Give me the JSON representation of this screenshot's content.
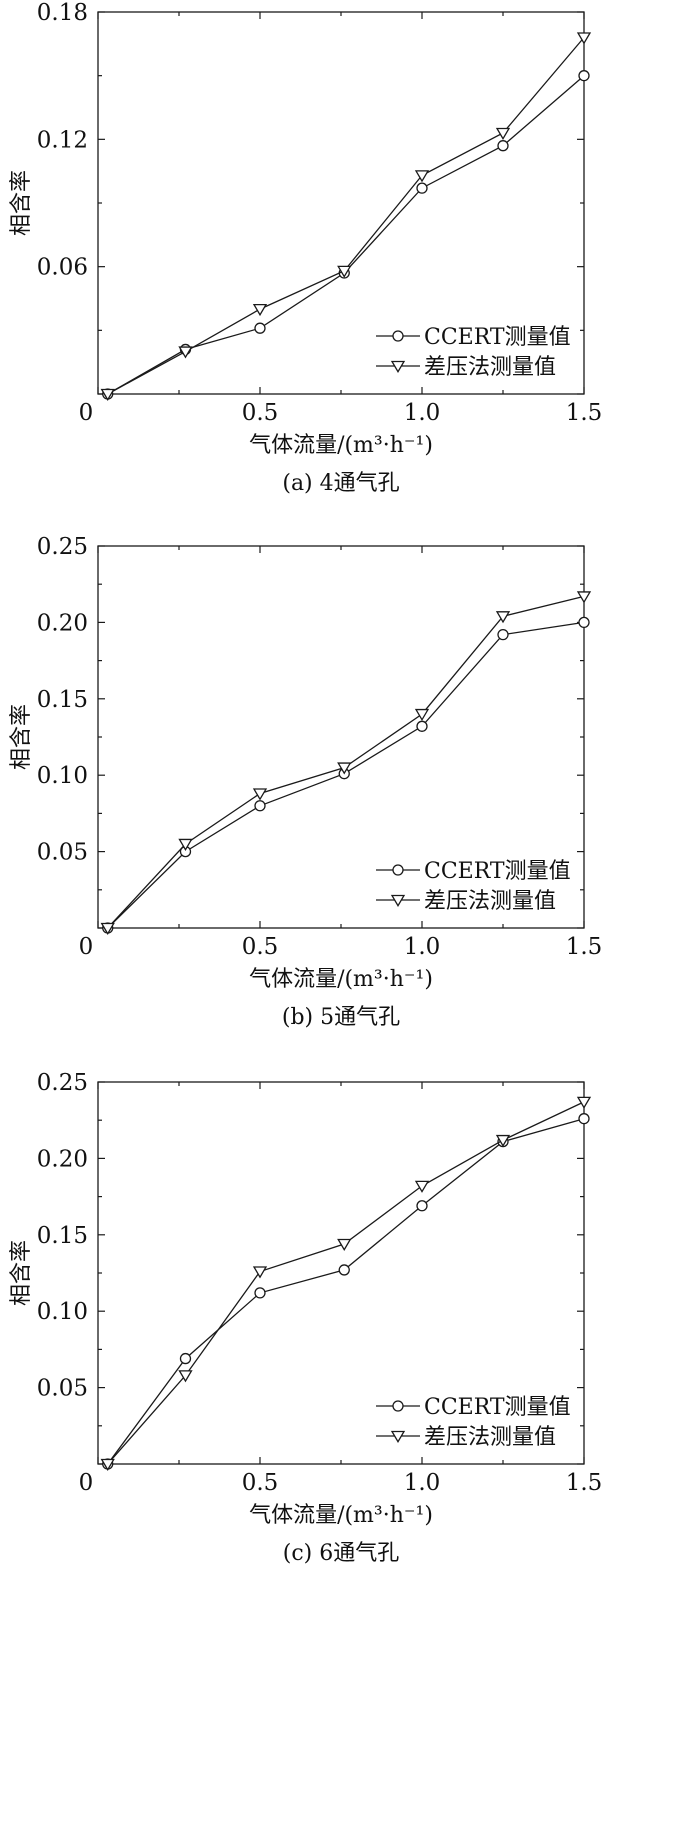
{
  "figure": {
    "background": "#ffffff",
    "line_color": "#1a1a1a"
  },
  "chart_data": [
    {
      "type": "line",
      "caption": "(a) 4通气孔",
      "xlabel": "气体流量/(m³·h⁻¹)",
      "ylabel": "相含率",
      "xlim": [
        0,
        1.5
      ],
      "ylim": [
        0,
        0.18
      ],
      "xticks": [
        0,
        0.5,
        1.0,
        1.5
      ],
      "xtick_labels": [
        "0",
        "0.5",
        "1.0",
        "1.5"
      ],
      "yticks": [
        0.06,
        0.12,
        0.18
      ],
      "ytick_labels": [
        "0.06",
        "0.12",
        "0.18"
      ],
      "legend_position": "bottom-right",
      "grid": false,
      "series": [
        {
          "name": "CCERT测量值",
          "marker": "circle",
          "x": [
            0.03,
            0.27,
            0.5,
            0.76,
            1.0,
            1.25,
            1.5
          ],
          "y": [
            0.0,
            0.021,
            0.031,
            0.057,
            0.097,
            0.117,
            0.15
          ]
        },
        {
          "name": "差压法测量值",
          "marker": "triangle-down",
          "x": [
            0.03,
            0.27,
            0.5,
            0.76,
            1.0,
            1.25,
            1.5
          ],
          "y": [
            0.0,
            0.02,
            0.04,
            0.058,
            0.103,
            0.123,
            0.168
          ]
        }
      ]
    },
    {
      "type": "line",
      "caption": "(b) 5通气孔",
      "xlabel": "气体流量/(m³·h⁻¹)",
      "ylabel": "相含率",
      "xlim": [
        0,
        1.5
      ],
      "ylim": [
        0,
        0.25
      ],
      "xticks": [
        0,
        0.5,
        1.0,
        1.5
      ],
      "xtick_labels": [
        "0",
        "0.5",
        "1.0",
        "1.5"
      ],
      "yticks": [
        0.05,
        0.1,
        0.15,
        0.2,
        0.25
      ],
      "ytick_labels": [
        "0.05",
        "0.10",
        "0.15",
        "0.20",
        "0.25"
      ],
      "legend_position": "bottom-right",
      "grid": false,
      "series": [
        {
          "name": "CCERT测量值",
          "marker": "circle",
          "x": [
            0.03,
            0.27,
            0.5,
            0.76,
            1.0,
            1.25,
            1.5
          ],
          "y": [
            0.0,
            0.05,
            0.08,
            0.101,
            0.132,
            0.192,
            0.2
          ]
        },
        {
          "name": "差压法测量值",
          "marker": "triangle-down",
          "x": [
            0.03,
            0.27,
            0.5,
            0.76,
            1.0,
            1.25,
            1.5
          ],
          "y": [
            0.0,
            0.055,
            0.088,
            0.105,
            0.14,
            0.204,
            0.217
          ]
        }
      ]
    },
    {
      "type": "line",
      "caption": "(c) 6通气孔",
      "xlabel": "气体流量/(m³·h⁻¹)",
      "ylabel": "相含率",
      "xlim": [
        0,
        1.5
      ],
      "ylim": [
        0,
        0.25
      ],
      "xticks": [
        0,
        0.5,
        1.0,
        1.5
      ],
      "xtick_labels": [
        "0",
        "0.5",
        "1.0",
        "1.5"
      ],
      "yticks": [
        0.05,
        0.1,
        0.15,
        0.2,
        0.25
      ],
      "ytick_labels": [
        "0.05",
        "0.10",
        "0.15",
        "0.20",
        "0.25"
      ],
      "legend_position": "bottom-right",
      "grid": false,
      "series": [
        {
          "name": "CCERT测量值",
          "marker": "circle",
          "x": [
            0.03,
            0.27,
            0.5,
            0.76,
            1.0,
            1.25,
            1.5
          ],
          "y": [
            0.0,
            0.069,
            0.112,
            0.127,
            0.169,
            0.211,
            0.226
          ]
        },
        {
          "name": "差压法测量值",
          "marker": "triangle-down",
          "x": [
            0.03,
            0.27,
            0.5,
            0.76,
            1.0,
            1.25,
            1.5
          ],
          "y": [
            0.0,
            0.058,
            0.126,
            0.144,
            0.182,
            0.212,
            0.237
          ]
        }
      ]
    }
  ]
}
